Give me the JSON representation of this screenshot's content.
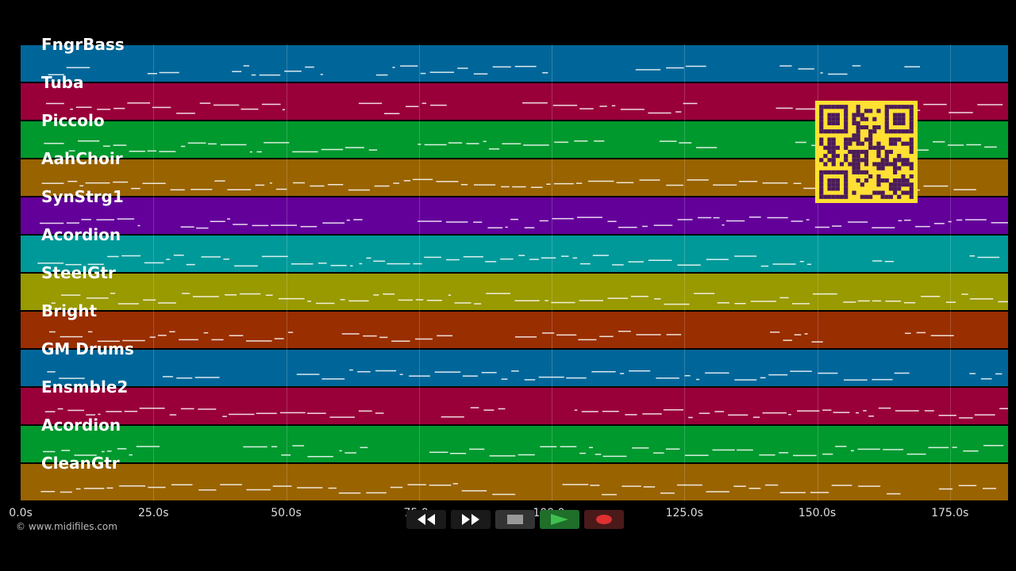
{
  "tracks": [
    {
      "name": "FngrBass",
      "color": "#006699"
    },
    {
      "name": "Tuba",
      "color": "#99003a"
    },
    {
      "name": "Piccolo",
      "color": "#00992e"
    },
    {
      "name": "AahChoir",
      "color": "#996300"
    },
    {
      "name": "SynStrg1",
      "color": "#63009a"
    },
    {
      "name": "Acordion",
      "color": "#009999"
    },
    {
      "name": "SteelGtr",
      "color": "#999900"
    },
    {
      "name": "Bright",
      "color": "#992e00"
    },
    {
      "name": "GM Drums",
      "color": "#006699"
    },
    {
      "name": "Ensmble2",
      "color": "#99003a"
    },
    {
      "name": "Acordion",
      "color": "#00992e"
    },
    {
      "name": "CleanGtr",
      "color": "#996300"
    }
  ],
  "timeline": {
    "ticks": [
      "0.0s",
      "25.0s",
      "50.0s",
      "75.0s",
      "100.0s",
      "125.0s",
      "150.0s",
      "175.0s"
    ],
    "max_seconds": 186
  },
  "copyright": "© www.midifiles.com",
  "controls": [
    {
      "name": "rewind-button",
      "icon": "rewind-icon",
      "bg": "#1a1a1a"
    },
    {
      "name": "fast-forward-button",
      "icon": "fast-forward-icon",
      "bg": "#1a1a1a"
    },
    {
      "name": "stop-button",
      "icon": "stop-icon",
      "bg": "#333333"
    },
    {
      "name": "play-button",
      "icon": "play-icon",
      "bg": "#1f6e2a"
    },
    {
      "name": "record-button",
      "icon": "record-icon",
      "bg": "#4a1a1a"
    }
  ],
  "qr": {
    "icon": "qr-code-icon",
    "fg": "#4a1a5a",
    "bg": "#ffe033"
  }
}
